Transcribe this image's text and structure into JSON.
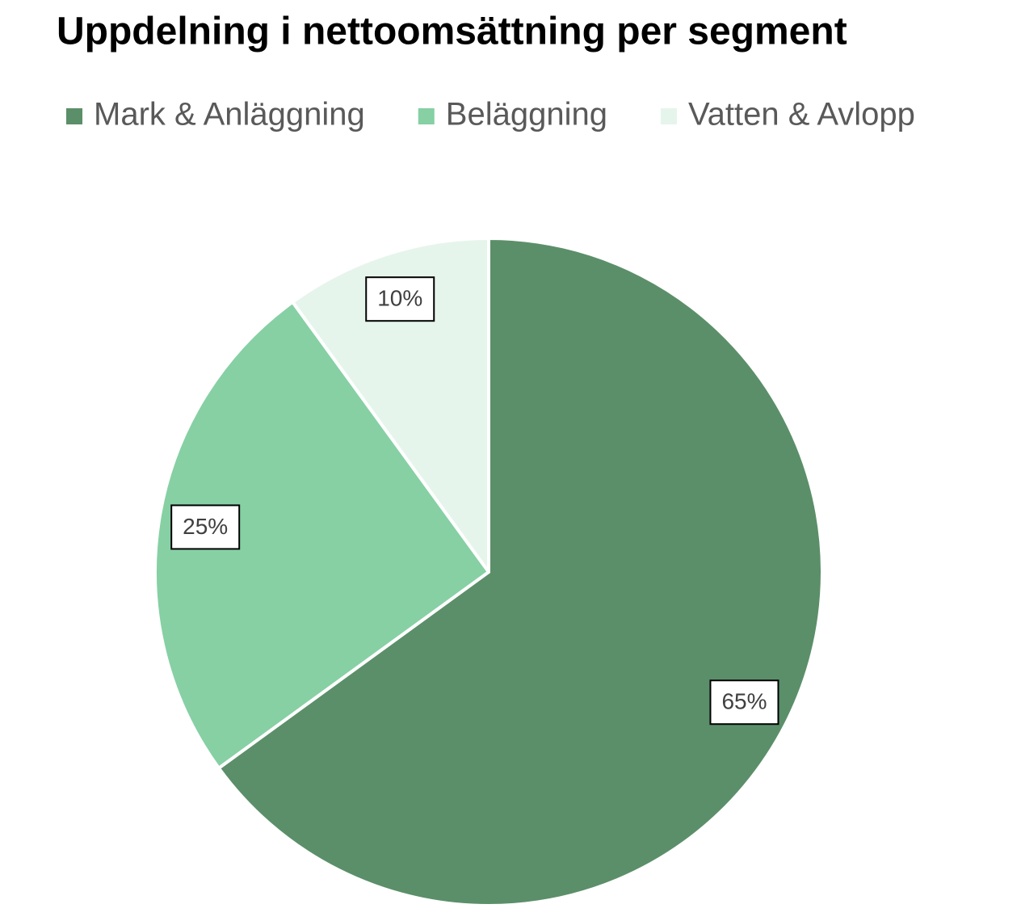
{
  "chart_data": {
    "type": "pie",
    "title": "Uppdelning i nettoomsättning per segment",
    "categories": [
      "Mark & Anläggning",
      "Beläggning",
      "Vatten & Avlopp"
    ],
    "values": [
      65,
      25,
      10
    ],
    "value_labels": [
      "65%",
      "25%",
      "10%"
    ],
    "colors": [
      "#5b8f69",
      "#86d0a4",
      "#e6f5ec"
    ],
    "legend": "top"
  }
}
